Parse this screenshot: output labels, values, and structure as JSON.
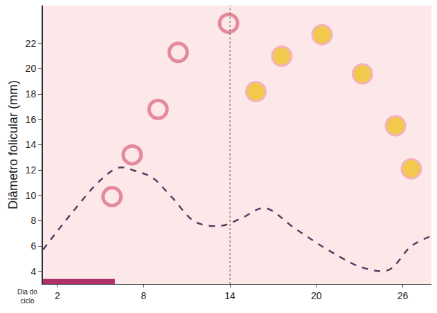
{
  "chart_data": {
    "type": "line",
    "y_label": "Diâmetro folicular (mm)",
    "x_label": "Dia do ciclo",
    "xlim": [
      1,
      28
    ],
    "xticks": [
      2,
      8,
      14,
      20,
      26
    ],
    "ylim": [
      3,
      25
    ],
    "yticks": [
      4,
      6,
      8,
      10,
      12,
      14,
      16,
      18,
      20,
      22
    ],
    "grid": false,
    "ovulation_day": 14,
    "period_days": [
      1,
      6
    ],
    "series": [
      {
        "type": "line",
        "color": "#5b3d63",
        "line_style": "dashed",
        "x": [
          1,
          3,
          5,
          6.3,
          7.5,
          8.6,
          10,
          11.6,
          13.4,
          14.8,
          16.4,
          18.5,
          20.8,
          23.2,
          25,
          26.6,
          28
        ],
        "values": [
          5.7,
          8.6,
          11.2,
          12.2,
          11.9,
          11.4,
          9.8,
          7.9,
          7.6,
          8.2,
          9.0,
          7.4,
          5.7,
          4.3,
          4.1,
          6.0,
          6.8
        ]
      },
      {
        "type": "scatter",
        "color": "#e58a9a",
        "marker": "circle-open",
        "x": [
          5.8,
          7.2,
          9,
          10.4,
          13.9
        ],
        "values": [
          9.9,
          13.2,
          16.8,
          21.3,
          23.6
        ]
      },
      {
        "type": "scatter",
        "color": "#f2c94c",
        "marker": "circle",
        "x": [
          15.8,
          17.6,
          20.4,
          23.2,
          25.5,
          26.6
        ],
        "values": [
          18.2,
          21,
          22.7,
          19.6,
          15.5,
          12.1
        ]
      }
    ]
  }
}
